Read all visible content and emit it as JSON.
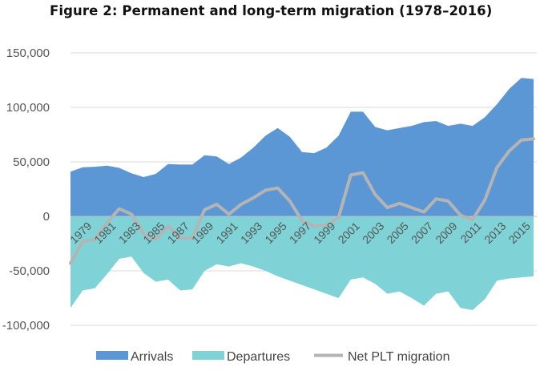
{
  "chart_data": {
    "type": "area",
    "title": "Figure 2: Permanent and long-term migration (1978–2016)",
    "xlabel": "",
    "ylabel": "",
    "ylim": [
      -100000,
      150000
    ],
    "yticks": [
      150000,
      100000,
      50000,
      0,
      -50000,
      -100000
    ],
    "ytick_labels": [
      "150,000",
      "100,000",
      "50,000",
      "0",
      "-50,000",
      "-100,000"
    ],
    "x": [
      1978,
      1979,
      1980,
      1981,
      1982,
      1983,
      1984,
      1985,
      1986,
      1987,
      1988,
      1989,
      1990,
      1991,
      1992,
      1993,
      1994,
      1995,
      1996,
      1997,
      1998,
      1999,
      2000,
      2001,
      2002,
      2003,
      2004,
      2005,
      2006,
      2007,
      2008,
      2009,
      2010,
      2011,
      2012,
      2013,
      2014,
      2015,
      2016
    ],
    "xtick_labels": [
      "1979",
      "1981",
      "1983",
      "1985",
      "1987",
      "1989",
      "1991",
      "1993",
      "1995",
      "1997",
      "1999",
      "2001",
      "2003",
      "2005",
      "2007",
      "2009",
      "2011",
      "2013",
      "2015"
    ],
    "grid": true,
    "legend_position": "bottom",
    "series": [
      {
        "name": "Arrivals",
        "kind": "area",
        "color": "#5b97d4",
        "values": [
          41000,
          45000,
          45500,
          46500,
          44500,
          39500,
          36000,
          39000,
          48000,
          47500,
          47500,
          56000,
          55000,
          48000,
          54000,
          63000,
          74000,
          81000,
          73000,
          59000,
          58000,
          63000,
          74000,
          96000,
          96000,
          82000,
          79000,
          81000,
          83000,
          86500,
          87500,
          83000,
          85000,
          83000,
          91000,
          103000,
          117000,
          127000,
          126000
        ]
      },
      {
        "name": "Departures",
        "kind": "area",
        "color": "#7fd3d6",
        "values": [
          -84000,
          -68000,
          -66000,
          -53000,
          -39000,
          -37000,
          -52000,
          -60000,
          -58000,
          -68000,
          -67000,
          -50000,
          -44000,
          -46000,
          -43000,
          -46000,
          -50000,
          -55000,
          -59000,
          -63000,
          -67000,
          -71000,
          -75000,
          -58000,
          -56000,
          -62000,
          -71000,
          -69000,
          -75000,
          -82000,
          -71000,
          -69000,
          -84000,
          -86000,
          -76000,
          -59000,
          -57000,
          -56000,
          -55000
        ]
      },
      {
        "name": "Net PLT migration",
        "kind": "line",
        "color": "#b4b4b4",
        "values": [
          -43000,
          -23000,
          -21000,
          -6000,
          7000,
          2000,
          -16000,
          -21000,
          -9000,
          -20000,
          -20000,
          6000,
          11000,
          2000,
          11000,
          17000,
          24000,
          26000,
          14000,
          -4000,
          -9000,
          -8000,
          -1000,
          38000,
          40000,
          20000,
          8000,
          12000,
          8000,
          4000,
          16000,
          14000,
          1000,
          -3000,
          15000,
          45000,
          60000,
          70000,
          71000
        ]
      }
    ]
  }
}
